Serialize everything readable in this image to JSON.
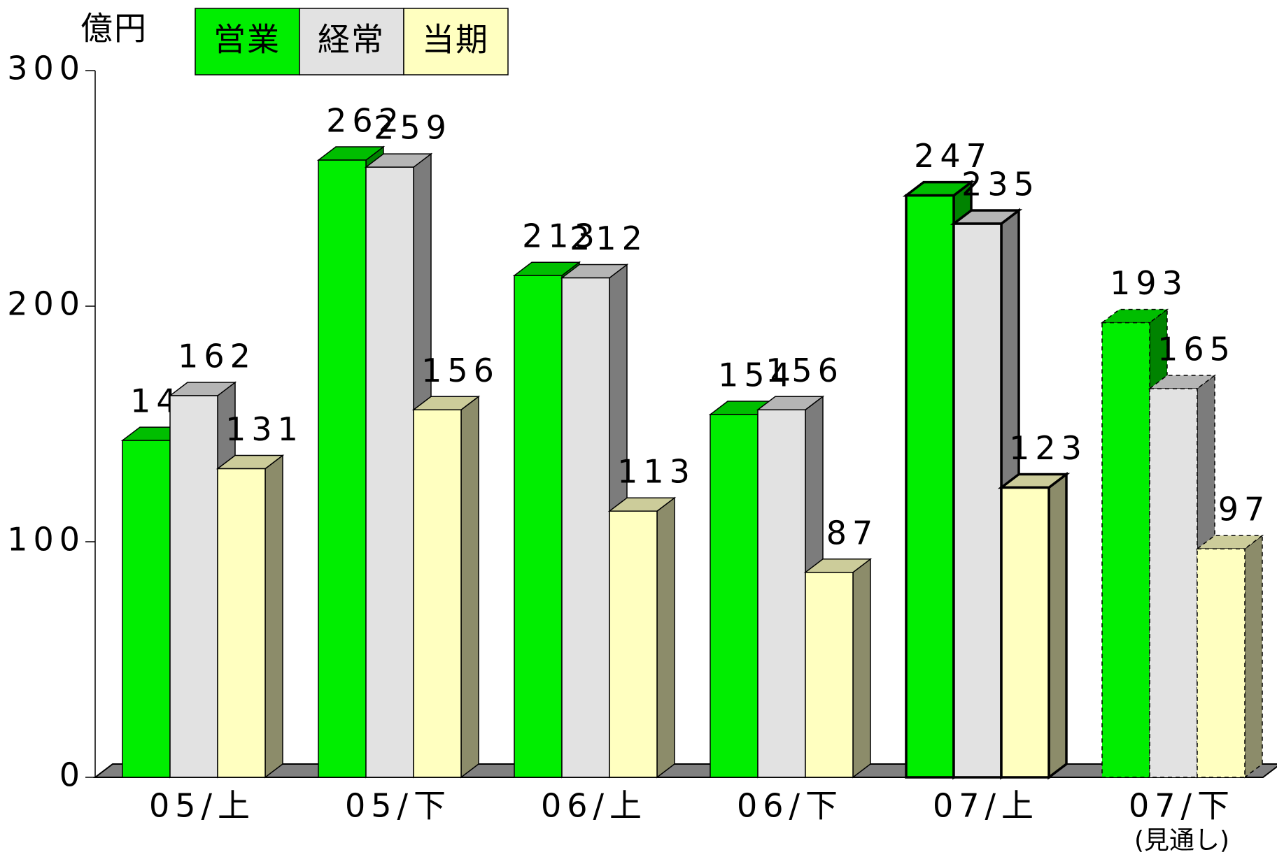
{
  "chart_data": {
    "type": "bar3d",
    "y_unit": "億円",
    "categories": [
      "05/上",
      "05/下",
      "06/上",
      "06/下",
      "07/上",
      "07/下"
    ],
    "category_note": "(見通し)",
    "series": [
      {
        "name": "営業",
        "color": "#00ee00",
        "values": [
          143,
          262,
          213,
          154,
          247,
          193
        ]
      },
      {
        "name": "経常",
        "color": "#e2e2e2",
        "values": [
          162,
          259,
          212,
          156,
          235,
          165
        ]
      },
      {
        "name": "当期",
        "color": "#ffffc0",
        "values": [
          131,
          156,
          113,
          87,
          123,
          97
        ]
      }
    ],
    "ylim": [
      0,
      300
    ],
    "yticks": [
      0,
      100,
      200,
      300
    ]
  }
}
